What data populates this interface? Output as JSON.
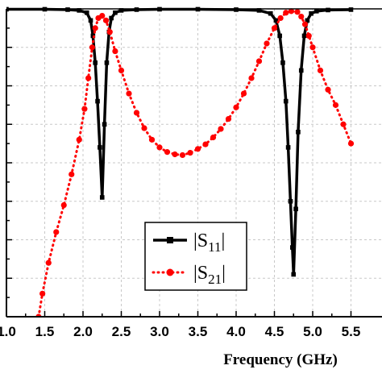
{
  "chart_data": {
    "type": "line",
    "xlabel": "Frequency (GHz)",
    "ylabel": "",
    "title": "",
    "xlim": [
      1.0,
      5.5
    ],
    "ylim": [
      -40,
      0
    ],
    "xticks": [
      "1.0",
      "1.5",
      "2.0",
      "2.5",
      "3.0",
      "3.5",
      "4.0",
      "4.5",
      "5.0",
      "5.5"
    ],
    "grid": true,
    "legend_position": "center",
    "legend": {
      "s11": {
        "pre": "|S",
        "sub": "11",
        "post": "|"
      },
      "s21": {
        "pre": "|S",
        "sub": "21",
        "post": "|"
      }
    },
    "series": [
      {
        "key": "s11",
        "color": "#000000",
        "marker": "square",
        "line": "solid",
        "points": [
          [
            1.0,
            -0.05
          ],
          [
            1.5,
            -0.05
          ],
          [
            1.8,
            -0.1
          ],
          [
            1.95,
            -0.2
          ],
          [
            2.05,
            -0.5
          ],
          [
            2.1,
            -1.5
          ],
          [
            2.13,
            -3.5
          ],
          [
            2.16,
            -7
          ],
          [
            2.19,
            -12
          ],
          [
            2.22,
            -18
          ],
          [
            2.25,
            -24.5
          ],
          [
            2.28,
            -15
          ],
          [
            2.31,
            -7
          ],
          [
            2.34,
            -3
          ],
          [
            2.37,
            -1.2
          ],
          [
            2.42,
            -0.5
          ],
          [
            2.5,
            -0.2
          ],
          [
            2.7,
            -0.1
          ],
          [
            3.0,
            -0.05
          ],
          [
            3.5,
            -0.05
          ],
          [
            4.0,
            -0.1
          ],
          [
            4.3,
            -0.2
          ],
          [
            4.45,
            -0.6
          ],
          [
            4.52,
            -1.5
          ],
          [
            4.57,
            -3.5
          ],
          [
            4.61,
            -7
          ],
          [
            4.65,
            -12
          ],
          [
            4.68,
            -18
          ],
          [
            4.71,
            -25
          ],
          [
            4.735,
            -31
          ],
          [
            4.75,
            -34.5
          ],
          [
            4.78,
            -26
          ],
          [
            4.81,
            -16
          ],
          [
            4.85,
            -8
          ],
          [
            4.89,
            -3.5
          ],
          [
            4.93,
            -1.5
          ],
          [
            4.98,
            -0.6
          ],
          [
            5.05,
            -0.3
          ],
          [
            5.2,
            -0.15
          ],
          [
            5.5,
            -0.1
          ]
        ]
      },
      {
        "key": "s21",
        "color": "#ff0000",
        "marker": "circle",
        "line": "dotted",
        "points": [
          [
            1.42,
            -40
          ],
          [
            1.47,
            -37
          ],
          [
            1.55,
            -33
          ],
          [
            1.65,
            -29
          ],
          [
            1.75,
            -25.5
          ],
          [
            1.85,
            -21.5
          ],
          [
            1.95,
            -17
          ],
          [
            2.02,
            -13
          ],
          [
            2.07,
            -9
          ],
          [
            2.12,
            -5
          ],
          [
            2.16,
            -2.5
          ],
          [
            2.2,
            -1.2
          ],
          [
            2.25,
            -0.9
          ],
          [
            2.3,
            -1.5
          ],
          [
            2.35,
            -3
          ],
          [
            2.42,
            -5.5
          ],
          [
            2.5,
            -8
          ],
          [
            2.6,
            -11
          ],
          [
            2.7,
            -13.5
          ],
          [
            2.8,
            -15.5
          ],
          [
            2.9,
            -17
          ],
          [
            3.0,
            -18
          ],
          [
            3.1,
            -18.6
          ],
          [
            3.2,
            -18.9
          ],
          [
            3.3,
            -19
          ],
          [
            3.4,
            -18.7
          ],
          [
            3.5,
            -18.2
          ],
          [
            3.6,
            -17.6
          ],
          [
            3.7,
            -16.7
          ],
          [
            3.8,
            -15.6
          ],
          [
            3.9,
            -14.3
          ],
          [
            4.0,
            -12.8
          ],
          [
            4.1,
            -11
          ],
          [
            4.2,
            -9
          ],
          [
            4.3,
            -6.8
          ],
          [
            4.4,
            -4.5
          ],
          [
            4.5,
            -2.5
          ],
          [
            4.58,
            -1.2
          ],
          [
            4.65,
            -0.5
          ],
          [
            4.72,
            -0.3
          ],
          [
            4.8,
            -0.4
          ],
          [
            4.85,
            -1
          ],
          [
            4.9,
            -2
          ],
          [
            4.95,
            -3.5
          ],
          [
            5.0,
            -5
          ],
          [
            5.1,
            -8
          ],
          [
            5.2,
            -10.5
          ],
          [
            5.3,
            -12.5
          ],
          [
            5.4,
            -15
          ],
          [
            5.5,
            -17.5
          ]
        ]
      }
    ]
  }
}
